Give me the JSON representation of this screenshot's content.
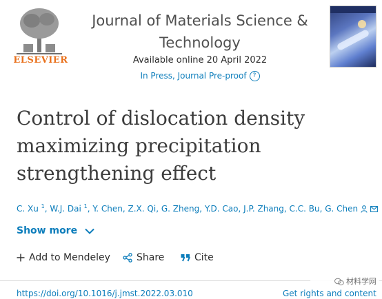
{
  "publisher": {
    "name": "ELSEVIER"
  },
  "journal": {
    "title_line1": "Journal of Materials Science &",
    "title_line2": "Technology",
    "available": "Available online 20 April 2022",
    "status": "In Press, Journal Pre-proof",
    "help_symbol": "?"
  },
  "article": {
    "title_line1": "Control of dislocation density",
    "title_line2": "maximizing precipitation",
    "title_line3": "strengthening effect"
  },
  "authors": [
    {
      "name": "C. Xu",
      "sup": "1"
    },
    {
      "name": "W.J. Dai",
      "sup": "1"
    },
    {
      "name": "Y. Chen",
      "sup": ""
    },
    {
      "name": "Z.X. Qi",
      "sup": ""
    },
    {
      "name": "G. Zheng",
      "sup": ""
    },
    {
      "name": "Y.D. Cao",
      "sup": ""
    },
    {
      "name": "J.P. Zhang",
      "sup": ""
    },
    {
      "name": "C.C. Bu",
      "sup": ""
    },
    {
      "name": "G. Chen",
      "sup": ""
    }
  ],
  "show_more": "Show more",
  "actions": {
    "mendeley": "Add to Mendeley",
    "share": "Share",
    "cite": "Cite"
  },
  "footer": {
    "doi": "https://doi.org/10.1016/j.jmst.2022.03.010",
    "rights": "Get rights and content"
  },
  "watermark": "材料学网",
  "colors": {
    "link": "#0c7dbb",
    "publisher": "#e9711c",
    "text": "#2e2e2e"
  }
}
